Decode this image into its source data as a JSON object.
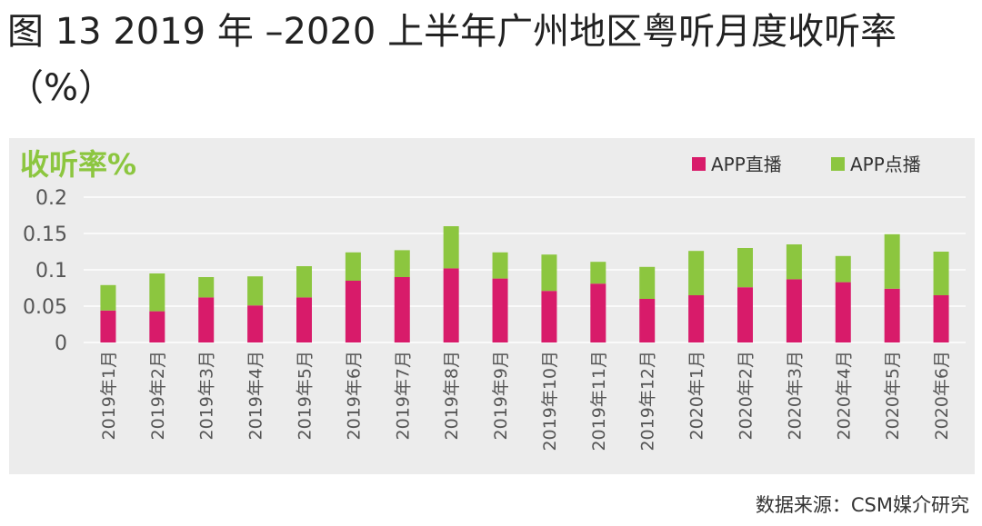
{
  "figure": {
    "title": "图 13 2019 年 –2020 上半年广州地区粤听月度收听率（%）",
    "source": "数据来源：CSM媒介研究"
  },
  "colors": {
    "live": "#d81b6a",
    "ondemand": "#8cc63f",
    "ylabel": "#8cc63f",
    "axis_text": "#555555",
    "grid": "#ffffff"
  },
  "chart_data": {
    "type": "bar",
    "stacked": true,
    "ylabel": "收听率%",
    "xlabel": "",
    "ylim": [
      0,
      0.2
    ],
    "yticks": [
      0,
      0.05,
      0.1,
      0.15,
      0.2
    ],
    "ytick_labels": [
      "0",
      "0.05",
      "0.1",
      "0.15",
      "0.2"
    ],
    "grid": true,
    "legend_position": "top-right",
    "categories": [
      "2019年1月",
      "2019年2月",
      "2019年3月",
      "2019年4月",
      "2019年5月",
      "2019年6月",
      "2019年7月",
      "2019年8月",
      "2019年9月",
      "2019年10月",
      "2019年11月",
      "2019年12月",
      "2020年1月",
      "2020年2月",
      "2020年3月",
      "2020年4月",
      "2020年5月",
      "2020年6月"
    ],
    "series": [
      {
        "name": "APP直播",
        "values": [
          0.044,
          0.043,
          0.062,
          0.051,
          0.062,
          0.085,
          0.09,
          0.102,
          0.088,
          0.071,
          0.081,
          0.06,
          0.065,
          0.076,
          0.087,
          0.083,
          0.074,
          0.065
        ]
      },
      {
        "name": "APP点播",
        "values": [
          0.035,
          0.052,
          0.028,
          0.04,
          0.043,
          0.039,
          0.037,
          0.058,
          0.036,
          0.05,
          0.03,
          0.044,
          0.061,
          0.054,
          0.048,
          0.036,
          0.075,
          0.06
        ]
      }
    ]
  }
}
